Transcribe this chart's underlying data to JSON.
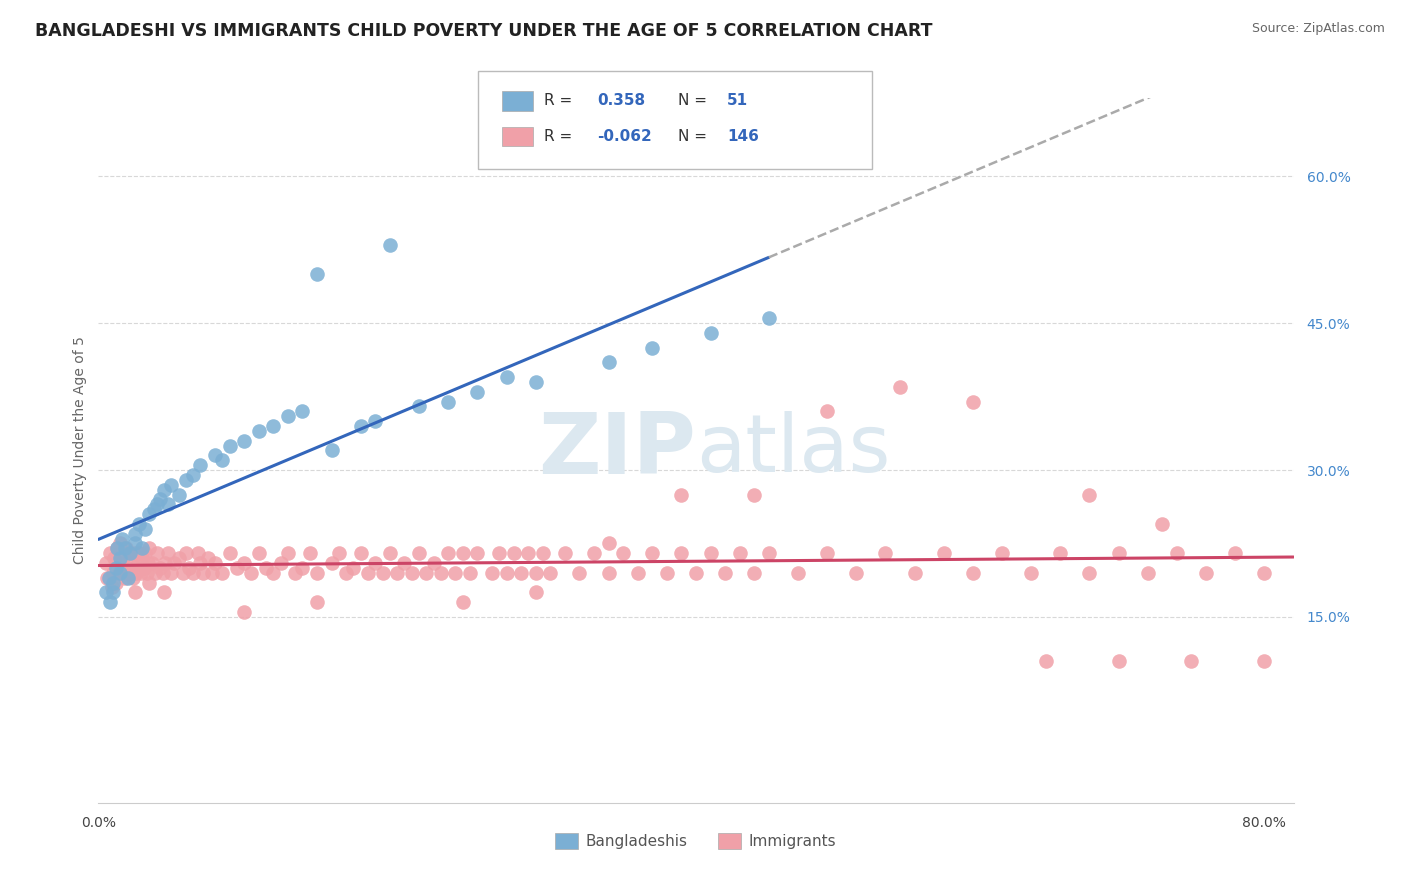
{
  "title": "BANGLADESHI VS IMMIGRANTS CHILD POVERTY UNDER THE AGE OF 5 CORRELATION CHART",
  "source": "Source: ZipAtlas.com",
  "ylabel": "Child Poverty Under the Age of 5",
  "xlim": [
    0.0,
    0.82
  ],
  "ylim": [
    -0.04,
    0.68
  ],
  "yticks_right": [
    0.15,
    0.3,
    0.45,
    0.6
  ],
  "ytick_labels_right": [
    "15.0%",
    "30.0%",
    "45.0%",
    "60.0%"
  ],
  "blue_R": 0.358,
  "blue_N": 51,
  "pink_R": -0.062,
  "pink_N": 146,
  "blue_color": "#7bafd4",
  "pink_color": "#f0a0a8",
  "blue_line_color": "#3366bb",
  "pink_line_color": "#cc4466",
  "dashed_line_color": "#aaaaaa",
  "background_color": "#ffffff",
  "watermark_zip": "ZIP",
  "watermark_atlas": "atlas",
  "watermark_color": "#c8d8e8",
  "legend_blue_label": "Bangladeshis",
  "legend_pink_label": "Immigrants",
  "title_fontsize": 12.5,
  "axis_label_fontsize": 10,
  "tick_fontsize": 10,
  "blue_x": [
    0.005,
    0.007,
    0.008,
    0.01,
    0.01,
    0.012,
    0.013,
    0.015,
    0.015,
    0.016,
    0.018,
    0.02,
    0.022,
    0.025,
    0.025,
    0.028,
    0.03,
    0.032,
    0.035,
    0.038,
    0.04,
    0.042,
    0.045,
    0.048,
    0.05,
    0.055,
    0.06,
    0.065,
    0.07,
    0.08,
    0.085,
    0.09,
    0.1,
    0.11,
    0.12,
    0.13,
    0.14,
    0.15,
    0.16,
    0.18,
    0.19,
    0.2,
    0.22,
    0.24,
    0.26,
    0.28,
    0.3,
    0.35,
    0.38,
    0.42,
    0.46
  ],
  "blue_y": [
    0.175,
    0.19,
    0.165,
    0.175,
    0.185,
    0.2,
    0.22,
    0.195,
    0.21,
    0.23,
    0.22,
    0.19,
    0.215,
    0.225,
    0.235,
    0.245,
    0.22,
    0.24,
    0.255,
    0.26,
    0.265,
    0.27,
    0.28,
    0.265,
    0.285,
    0.275,
    0.29,
    0.295,
    0.305,
    0.315,
    0.31,
    0.325,
    0.33,
    0.34,
    0.345,
    0.355,
    0.36,
    0.5,
    0.32,
    0.345,
    0.35,
    0.53,
    0.365,
    0.37,
    0.38,
    0.395,
    0.39,
    0.41,
    0.425,
    0.44,
    0.455
  ],
  "pink_x": [
    0.005,
    0.006,
    0.008,
    0.009,
    0.01,
    0.011,
    0.012,
    0.013,
    0.014,
    0.015,
    0.015,
    0.016,
    0.017,
    0.018,
    0.019,
    0.02,
    0.021,
    0.022,
    0.023,
    0.024,
    0.025,
    0.026,
    0.027,
    0.028,
    0.029,
    0.03,
    0.031,
    0.032,
    0.033,
    0.034,
    0.035,
    0.037,
    0.039,
    0.04,
    0.042,
    0.044,
    0.046,
    0.048,
    0.05,
    0.052,
    0.055,
    0.058,
    0.06,
    0.062,
    0.065,
    0.068,
    0.07,
    0.072,
    0.075,
    0.078,
    0.08,
    0.085,
    0.09,
    0.095,
    0.1,
    0.105,
    0.11,
    0.115,
    0.12,
    0.125,
    0.13,
    0.135,
    0.14,
    0.145,
    0.15,
    0.16,
    0.165,
    0.17,
    0.175,
    0.18,
    0.185,
    0.19,
    0.195,
    0.2,
    0.205,
    0.21,
    0.215,
    0.22,
    0.225,
    0.23,
    0.235,
    0.24,
    0.245,
    0.25,
    0.255,
    0.26,
    0.27,
    0.275,
    0.28,
    0.285,
    0.29,
    0.295,
    0.3,
    0.305,
    0.31,
    0.32,
    0.33,
    0.34,
    0.35,
    0.36,
    0.37,
    0.38,
    0.39,
    0.4,
    0.41,
    0.42,
    0.43,
    0.44,
    0.45,
    0.46,
    0.48,
    0.5,
    0.52,
    0.54,
    0.56,
    0.58,
    0.6,
    0.62,
    0.64,
    0.66,
    0.68,
    0.7,
    0.72,
    0.74,
    0.76,
    0.78,
    0.8,
    0.025,
    0.035,
    0.045,
    0.4,
    0.5,
    0.6,
    0.55,
    0.45,
    0.35,
    0.65,
    0.7,
    0.75,
    0.8,
    0.68,
    0.73,
    0.25,
    0.3,
    0.1,
    0.15
  ],
  "pink_y": [
    0.205,
    0.19,
    0.215,
    0.18,
    0.195,
    0.21,
    0.185,
    0.22,
    0.195,
    0.205,
    0.225,
    0.195,
    0.21,
    0.19,
    0.22,
    0.2,
    0.215,
    0.195,
    0.205,
    0.19,
    0.215,
    0.195,
    0.205,
    0.215,
    0.195,
    0.21,
    0.2,
    0.215,
    0.195,
    0.205,
    0.22,
    0.205,
    0.195,
    0.215,
    0.2,
    0.195,
    0.205,
    0.215,
    0.195,
    0.205,
    0.21,
    0.195,
    0.215,
    0.2,
    0.195,
    0.215,
    0.205,
    0.195,
    0.21,
    0.195,
    0.205,
    0.195,
    0.215,
    0.2,
    0.205,
    0.195,
    0.215,
    0.2,
    0.195,
    0.205,
    0.215,
    0.195,
    0.2,
    0.215,
    0.195,
    0.205,
    0.215,
    0.195,
    0.2,
    0.215,
    0.195,
    0.205,
    0.195,
    0.215,
    0.195,
    0.205,
    0.195,
    0.215,
    0.195,
    0.205,
    0.195,
    0.215,
    0.195,
    0.215,
    0.195,
    0.215,
    0.195,
    0.215,
    0.195,
    0.215,
    0.195,
    0.215,
    0.195,
    0.215,
    0.195,
    0.215,
    0.195,
    0.215,
    0.195,
    0.215,
    0.195,
    0.215,
    0.195,
    0.215,
    0.195,
    0.215,
    0.195,
    0.215,
    0.195,
    0.215,
    0.195,
    0.215,
    0.195,
    0.215,
    0.195,
    0.215,
    0.195,
    0.215,
    0.195,
    0.215,
    0.195,
    0.215,
    0.195,
    0.215,
    0.195,
    0.215,
    0.195,
    0.175,
    0.185,
    0.175,
    0.275,
    0.36,
    0.37,
    0.385,
    0.275,
    0.225,
    0.105,
    0.105,
    0.105,
    0.105,
    0.275,
    0.245,
    0.165,
    0.175,
    0.155,
    0.165
  ]
}
